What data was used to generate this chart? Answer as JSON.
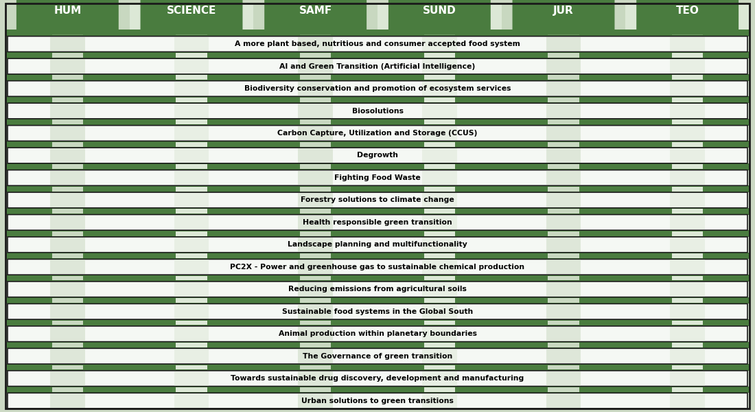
{
  "faculties": [
    "HUM",
    "SCIENCE",
    "SAMF",
    "SUND",
    "JUR",
    "TEO"
  ],
  "solutions": [
    "A more plant based, nutritious and consumer accepted food system",
    "AI and Green Transition (Artificial Intelligence)",
    "Biodiversity conservation and promotion of ecosystem services",
    "Biosolutions",
    "Carbon Capture, Utilization and Storage (CCUS)",
    "Degrowth",
    "Fighting Food Waste",
    "Forestry solutions to climate change",
    "Health responsible green transition",
    "Landscape planning and multifunctionality",
    "PC2X - Power and greenhouse gas to sustainable chemical production",
    "Reducing emissions from agricultural soils",
    "Sustainable food systems in the Global South",
    "Animal production within planetary boundaries",
    "The Governance of green transition",
    "Towards sustainable drug discovery, development and manufacturing",
    "Urban solutions to green transitions"
  ],
  "green_dark": "#4a7c3f",
  "green_light": "#edf2ea",
  "col_stripe_light": "#dce8d6",
  "col_stripe_dark": "#c8d8c0",
  "white": "#f5f8f4",
  "black": "#000000",
  "bg_color": "#ccd9c4",
  "header_text_color": "#ffffff",
  "row_text_color": "#000000",
  "border_color": "#1a1a1a",
  "fig_width": 11.0,
  "fig_height": 6.0,
  "n_cols": 6
}
